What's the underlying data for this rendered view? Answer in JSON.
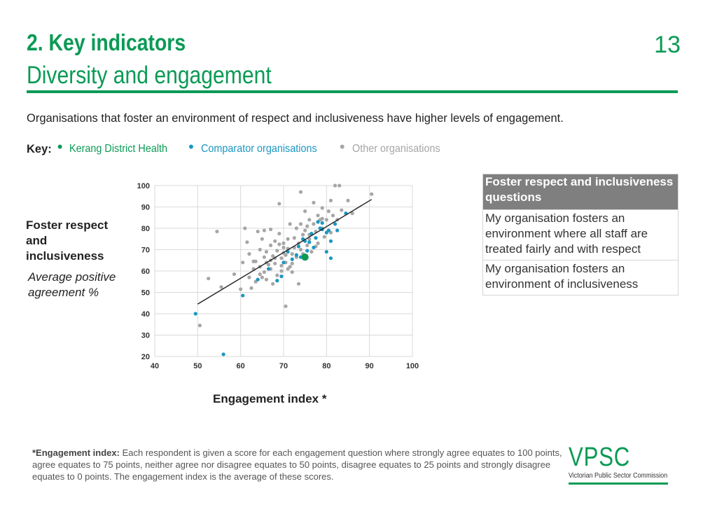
{
  "header": {
    "title": "2. Key indicators",
    "subtitle": "Diversity and engagement",
    "page_number": "13"
  },
  "intro": "Organisations that foster an environment of respect and inclusiveness have higher levels of engagement.",
  "key": {
    "label": "Key:",
    "items": [
      {
        "label": "Kerang District Health",
        "color": "#0b9a55"
      },
      {
        "label": "Comparator organisations",
        "color": "#1a97c2"
      },
      {
        "label": "Other organisations",
        "color": "#a6a6a6"
      }
    ]
  },
  "y_label": {
    "main": "Foster respect and inclusiveness",
    "sub": "Average positive agreement %"
  },
  "x_label": "Engagement index *",
  "questions": {
    "header": "Foster respect and inclusiveness questions",
    "rows": [
      "My organisation fosters an environment where all staff are treated fairly and with respect",
      "My organisation fosters an environment of inclusiveness"
    ]
  },
  "footnote": {
    "label": "*Engagement index:",
    "text": " Each respondent is given a score for each engagement question where strongly agree equates to 100 points, agree equates to 75 points, neither agree nor disagree equates to 50 points, disagree equates to 25 points and strongly disagree equates to 0 points. The engagement index is the average of these scores."
  },
  "logo": {
    "main": "VPSC",
    "sub": "Victorian Public Sector Commission"
  },
  "chart_data": {
    "type": "scatter",
    "xlabel": "Engagement index *",
    "ylabel": "Foster respect and inclusiveness",
    "xlim": [
      40,
      100
    ],
    "ylim": [
      20,
      100
    ],
    "x_ticks": [
      40,
      50,
      60,
      70,
      80,
      90,
      100
    ],
    "y_ticks": [
      20,
      30,
      40,
      50,
      60,
      70,
      80,
      90,
      100
    ],
    "grid": true,
    "trendline": {
      "x": [
        50,
        90.5
      ],
      "y": [
        44.5,
        93.5
      ]
    },
    "series": [
      {
        "name": "Other organisations",
        "color": "#a6a6a6",
        "points": [
          [
            50.5,
            34.5
          ],
          [
            52.5,
            56.5
          ],
          [
            54.5,
            78.5
          ],
          [
            55.5,
            52.5
          ],
          [
            58.5,
            58.5
          ],
          [
            60,
            51.5
          ],
          [
            60.5,
            64
          ],
          [
            61,
            80
          ],
          [
            61.5,
            73.5
          ],
          [
            62,
            68
          ],
          [
            62,
            57
          ],
          [
            62.5,
            52
          ],
          [
            63,
            61
          ],
          [
            63.5,
            64.5
          ],
          [
            63.5,
            55
          ],
          [
            64,
            78.5
          ],
          [
            64.5,
            70
          ],
          [
            64.5,
            62
          ],
          [
            65,
            75
          ],
          [
            65.5,
            79
          ],
          [
            65.5,
            66.5
          ],
          [
            65.5,
            59.5
          ],
          [
            66,
            69
          ],
          [
            66,
            56
          ],
          [
            66.5,
            63
          ],
          [
            67,
            79.5
          ],
          [
            67,
            72
          ],
          [
            67,
            61
          ],
          [
            67.5,
            67
          ],
          [
            67.5,
            54
          ],
          [
            68,
            74
          ],
          [
            68,
            63.5
          ],
          [
            68.5,
            69.5
          ],
          [
            68.5,
            58
          ],
          [
            69,
            91.5
          ],
          [
            69,
            77.5
          ],
          [
            69,
            72.5
          ],
          [
            69.5,
            66
          ],
          [
            69.5,
            62.5
          ],
          [
            70,
            73
          ],
          [
            70,
            71
          ],
          [
            70.5,
            67.5
          ],
          [
            70.5,
            64
          ],
          [
            70.5,
            43.5
          ],
          [
            71,
            75
          ],
          [
            71,
            70.5
          ],
          [
            71.5,
            82
          ],
          [
            71.5,
            62
          ],
          [
            72,
            68
          ],
          [
            72,
            59.5
          ],
          [
            72.5,
            75.5
          ],
          [
            72.5,
            71
          ],
          [
            73,
            80
          ],
          [
            73,
            66.5
          ],
          [
            73.5,
            73
          ],
          [
            73.5,
            54
          ],
          [
            74,
            97
          ],
          [
            74,
            82
          ],
          [
            74,
            70
          ],
          [
            74.5,
            77
          ],
          [
            74.5,
            68
          ],
          [
            75,
            88
          ],
          [
            75,
            79
          ],
          [
            75.5,
            72
          ],
          [
            75.5,
            81
          ],
          [
            76,
            84
          ],
          [
            76,
            75
          ],
          [
            76.5,
            69
          ],
          [
            77,
            92
          ],
          [
            77,
            82
          ],
          [
            77.5,
            78.5
          ],
          [
            78,
            73
          ],
          [
            78,
            86
          ],
          [
            78.5,
            84
          ],
          [
            79,
            89.5
          ],
          [
            79,
            80
          ],
          [
            79.5,
            76
          ],
          [
            80,
            84
          ],
          [
            80.5,
            88
          ],
          [
            81,
            93
          ],
          [
            81,
            78
          ],
          [
            81.5,
            86
          ],
          [
            82,
            100
          ],
          [
            82.5,
            84
          ],
          [
            83,
            100
          ],
          [
            83.5,
            88.5
          ],
          [
            85,
            93
          ],
          [
            86,
            87
          ],
          [
            90.5,
            96
          ],
          [
            66,
            64
          ],
          [
            67,
            65
          ],
          [
            68,
            66
          ],
          [
            69.5,
            60
          ],
          [
            71,
            61
          ],
          [
            63,
            64.5
          ],
          [
            64.5,
            58.5
          ],
          [
            65,
            57
          ],
          [
            70,
            68.5
          ],
          [
            72,
            63.5
          ],
          [
            76,
            77
          ],
          [
            77.5,
            71.5
          ],
          [
            79,
            84.5
          ]
        ]
      },
      {
        "name": "Comparator organisations",
        "color": "#1a97c2",
        "points": [
          [
            49.5,
            40
          ],
          [
            56,
            21
          ],
          [
            60.5,
            48.5
          ],
          [
            64,
            56
          ],
          [
            66.5,
            61
          ],
          [
            68.5,
            55.5
          ],
          [
            69.5,
            57.5
          ],
          [
            70,
            64
          ],
          [
            71,
            69
          ],
          [
            72,
            65.5
          ],
          [
            73,
            67.5
          ],
          [
            73.5,
            71.5
          ],
          [
            74,
            66.5
          ],
          [
            74.5,
            75
          ],
          [
            75,
            74
          ],
          [
            75.5,
            69.5
          ],
          [
            76,
            73.5
          ],
          [
            76.5,
            77.5
          ],
          [
            77,
            71
          ],
          [
            77.5,
            75.5
          ],
          [
            78,
            83
          ],
          [
            78.5,
            80
          ],
          [
            79,
            79.5
          ],
          [
            79,
            82.5
          ],
          [
            80,
            69
          ],
          [
            80,
            78
          ],
          [
            80.5,
            79
          ],
          [
            81,
            74
          ],
          [
            81,
            66
          ],
          [
            82,
            82
          ],
          [
            82.5,
            79
          ],
          [
            84.5,
            87
          ]
        ]
      },
      {
        "name": "Kerang District Health",
        "color": "#0b9a55",
        "points": [
          [
            75,
            66.5
          ]
        ]
      }
    ]
  }
}
